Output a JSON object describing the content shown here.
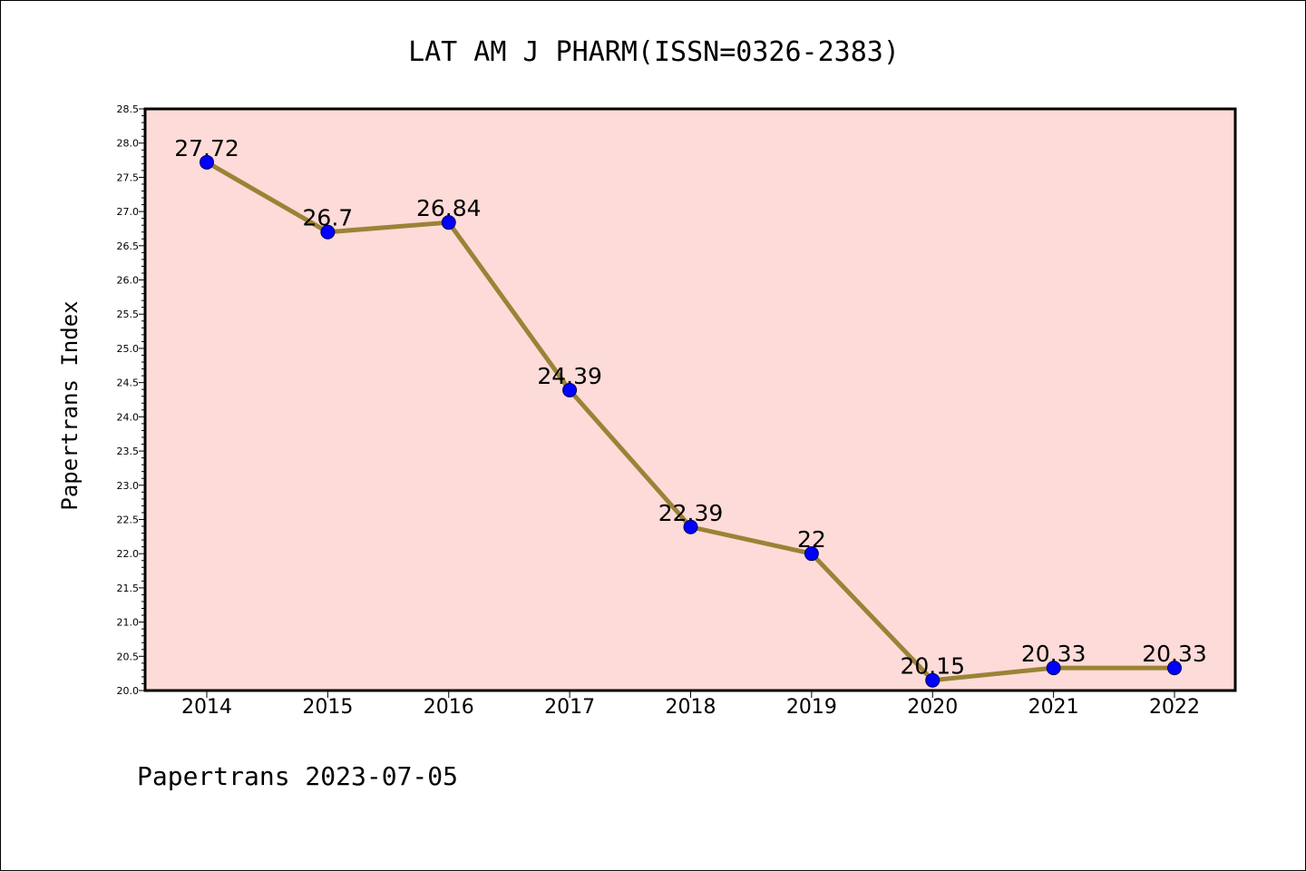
{
  "chart_data": {
    "type": "line",
    "title": "LAT AM J PHARM(ISSN=0326-2383)",
    "xlabel": "",
    "ylabel": "Papertrans Index",
    "categories": [
      "2014",
      "2015",
      "2016",
      "2017",
      "2018",
      "2019",
      "2020",
      "2021",
      "2022"
    ],
    "series": [
      {
        "values": [
          27.72,
          26.7,
          26.84,
          24.39,
          22.39,
          22,
          20.15,
          20.33,
          20.33
        ],
        "data_labels": [
          "27.72",
          "26.7",
          "26.84",
          "24.39",
          "22.39",
          "22",
          "20.15",
          "20.33",
          "20.33"
        ]
      }
    ],
    "ylim": [
      20.0,
      28.5
    ],
    "y_ticks": [
      "20.0",
      "20.5",
      "21.0",
      "21.5",
      "22.0",
      "22.5",
      "23.0",
      "23.5",
      "24.0",
      "24.5",
      "25.0",
      "25.5",
      "26.0",
      "26.5",
      "27.0",
      "27.5",
      "28.0",
      "28.5"
    ],
    "grid": false,
    "colors": {
      "plot_background": "#fddbd8",
      "line": "#9a8337",
      "marker": "#0000ff"
    }
  },
  "footer": "Papertrans 2023-07-05"
}
